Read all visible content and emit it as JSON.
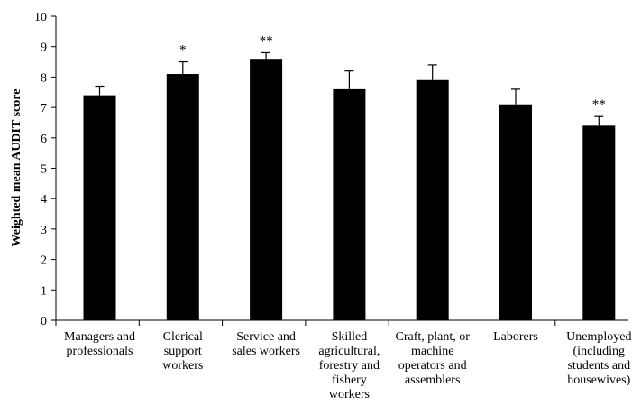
{
  "chart_data": {
    "type": "bar",
    "title": "",
    "xlabel": "",
    "ylabel": "Weighted mean AUDIT score",
    "ylim": [
      0,
      10
    ],
    "yticks": [
      0,
      1,
      2,
      3,
      4,
      5,
      6,
      7,
      8,
      9,
      10
    ],
    "grid": false,
    "legend": "none",
    "bar_color": "#000000",
    "categories": [
      [
        "Managers and",
        "professionals"
      ],
      [
        "Clerical",
        "support",
        "workers"
      ],
      [
        "Service and",
        "sales workers"
      ],
      [
        "Skilled",
        "agricultural,",
        "forestry and",
        "fishery",
        "workers"
      ],
      [
        "Craft, plant, or",
        "machine",
        "operators and",
        "assemblers"
      ],
      [
        "Laborers"
      ],
      [
        "Unemployed",
        "(including",
        "students and",
        "housewives)"
      ]
    ],
    "values": [
      7.4,
      8.1,
      8.6,
      7.6,
      7.9,
      7.1,
      6.4
    ],
    "error_upper": [
      7.7,
      8.5,
      8.8,
      8.2,
      8.4,
      7.6,
      6.7
    ],
    "annotations": [
      "",
      "*",
      "**",
      "",
      "",
      "",
      "**"
    ]
  }
}
